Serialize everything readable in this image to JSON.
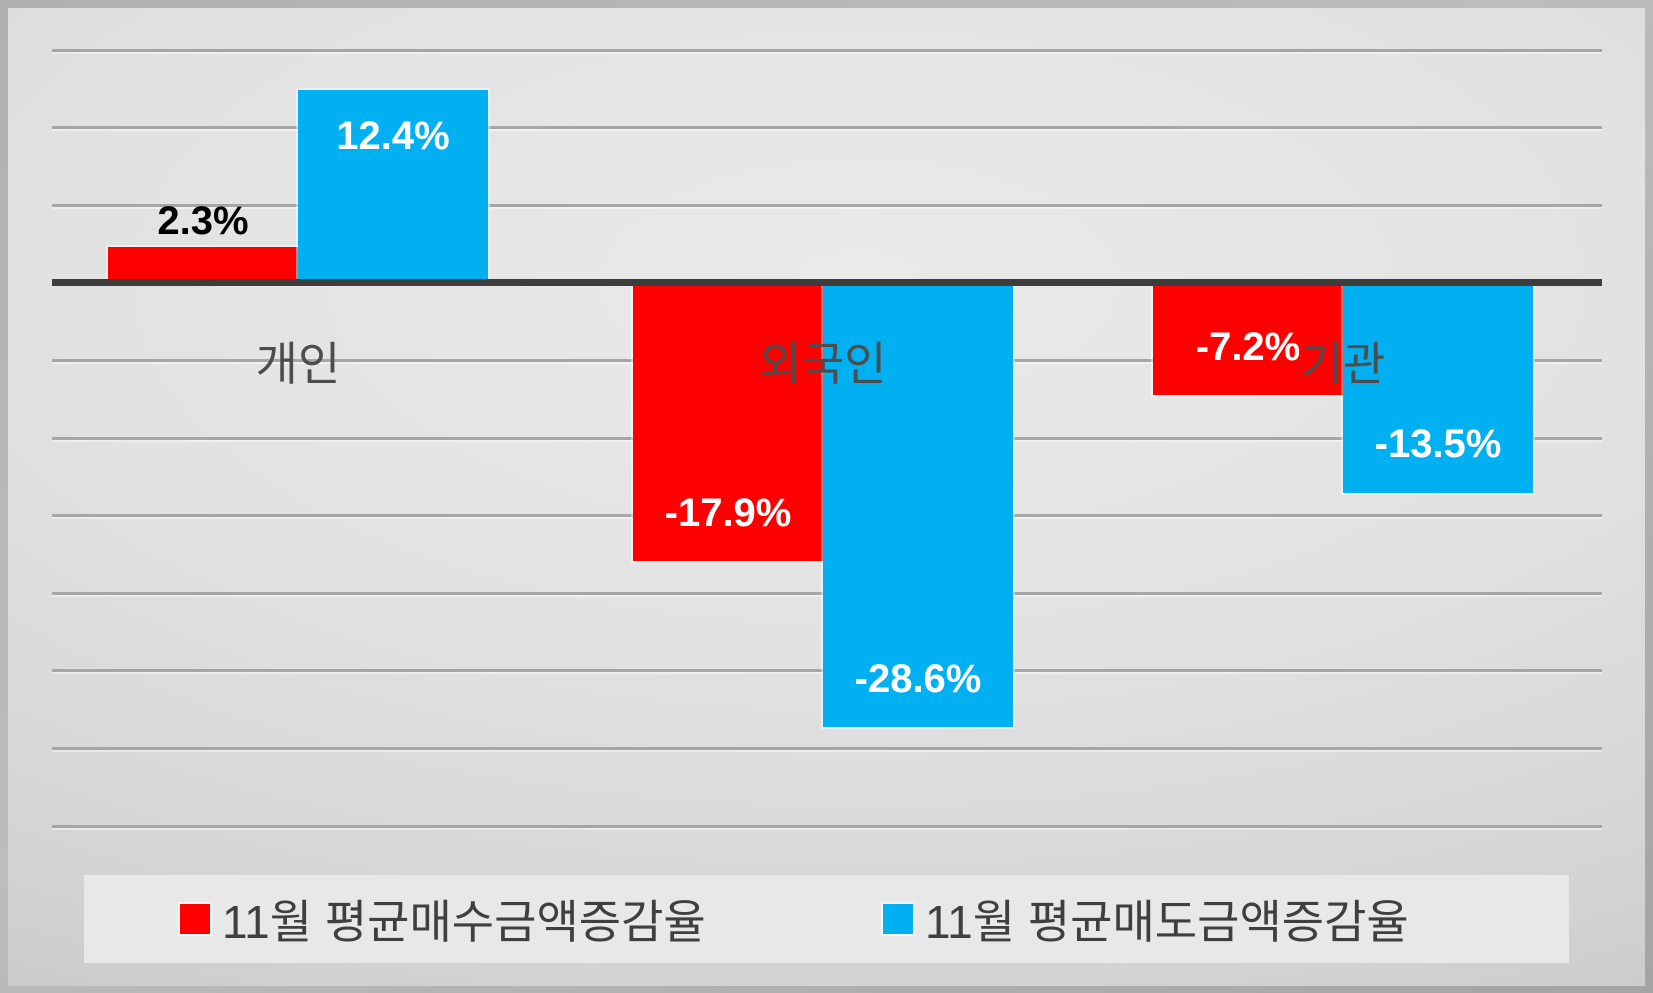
{
  "chart_data": {
    "type": "bar",
    "title": "",
    "xlabel": "",
    "ylabel": "",
    "categories": [
      "개인",
      "외국인",
      "기관"
    ],
    "series": [
      {
        "name": "11월 평균매수금액증감율",
        "color": "#ff0000",
        "values": [
          2.3,
          -17.9,
          -7.2
        ],
        "data_labels": [
          "2.3%",
          "-17.9%",
          "-7.2%"
        ],
        "label_colors": [
          "#000000",
          "#ffffff",
          "#ffffff"
        ]
      },
      {
        "name": "11월 평균매도금액증감율",
        "color": "#00b0f0",
        "values": [
          12.4,
          -28.6,
          -13.5
        ],
        "data_labels": [
          "12.4%",
          "-28.6%",
          "-13.5%"
        ],
        "label_colors": [
          "#ffffff",
          "#ffffff",
          "#ffffff"
        ]
      }
    ],
    "ylim": [
      -35,
      15
    ],
    "gridline_step": 5,
    "grid": true,
    "y_axis_tick_labels_visible": false,
    "legend_position": "bottom"
  },
  "style": {
    "axis_line_color": "#3d3d3d",
    "gridline_color": "#a6a6a6",
    "category_label_color": "#4d4d4d",
    "legend_text_color": "#3f3f3f",
    "legend_background": "#e8e8e8"
  }
}
